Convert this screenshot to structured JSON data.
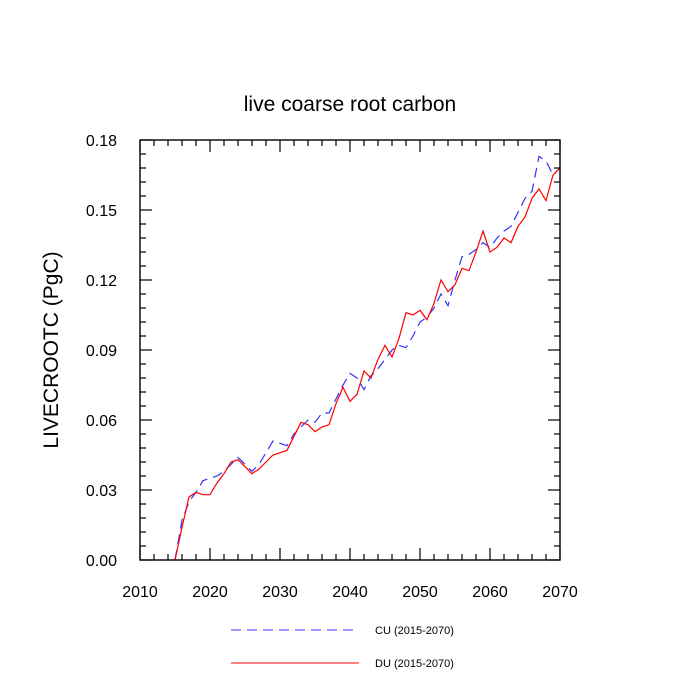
{
  "chart_data": {
    "type": "line",
    "title": "live coarse root carbon",
    "xlabel": "",
    "ylabel": "LIVECROOTC  (PgC)",
    "xlim": [
      2010,
      2070
    ],
    "ylim": [
      0.0,
      0.18
    ],
    "xticks": [
      2010,
      2020,
      2030,
      2040,
      2050,
      2060,
      2070
    ],
    "xtick_labels": [
      "2010",
      "2020",
      "2030",
      "2040",
      "2050",
      "2060",
      "2070"
    ],
    "yticks": [
      0.0,
      0.03,
      0.06,
      0.09,
      0.12,
      0.15,
      0.18
    ],
    "ytick_labels": [
      "0.00",
      "0.03",
      "0.06",
      "0.09",
      "0.12",
      "0.15",
      "0.18"
    ],
    "grid": false,
    "legend_position": "bottom",
    "x": [
      2015,
      2016,
      2017,
      2018,
      2019,
      2020,
      2021,
      2022,
      2023,
      2024,
      2025,
      2026,
      2027,
      2028,
      2029,
      2030,
      2031,
      2032,
      2033,
      2034,
      2035,
      2036,
      2037,
      2038,
      2039,
      2040,
      2041,
      2042,
      2043,
      2044,
      2045,
      2046,
      2047,
      2048,
      2049,
      2050,
      2051,
      2052,
      2053,
      2054,
      2055,
      2056,
      2057,
      2058,
      2059,
      2060,
      2061,
      2062,
      2063,
      2064,
      2065,
      2066,
      2067,
      2068,
      2069,
      2070
    ],
    "series": [
      {
        "name": "CU (2015-2070)",
        "color": "#3333ff",
        "style": "dashed",
        "values": [
          0.0,
          0.017,
          0.025,
          0.029,
          0.034,
          0.035,
          0.036,
          0.038,
          0.041,
          0.044,
          0.041,
          0.038,
          0.041,
          0.046,
          0.051,
          0.05,
          0.049,
          0.054,
          0.057,
          0.06,
          0.059,
          0.063,
          0.063,
          0.069,
          0.075,
          0.08,
          0.078,
          0.073,
          0.079,
          0.082,
          0.086,
          0.09,
          0.092,
          0.091,
          0.096,
          0.102,
          0.104,
          0.108,
          0.114,
          0.109,
          0.12,
          0.13,
          0.131,
          0.133,
          0.136,
          0.134,
          0.138,
          0.141,
          0.143,
          0.149,
          0.155,
          0.158,
          0.173,
          0.171,
          0.165,
          0.168
        ]
      },
      {
        "name": "DU (2015-2070)",
        "color": "#ff0000",
        "style": "solid",
        "values": [
          0.0,
          0.014,
          0.027,
          0.029,
          0.028,
          0.028,
          0.033,
          0.037,
          0.042,
          0.043,
          0.04,
          0.037,
          0.039,
          0.042,
          0.045,
          0.046,
          0.047,
          0.053,
          0.059,
          0.058,
          0.055,
          0.057,
          0.058,
          0.067,
          0.074,
          0.068,
          0.071,
          0.081,
          0.078,
          0.086,
          0.092,
          0.087,
          0.095,
          0.106,
          0.105,
          0.107,
          0.103,
          0.11,
          0.12,
          0.115,
          0.118,
          0.125,
          0.124,
          0.132,
          0.141,
          0.132,
          0.134,
          0.138,
          0.136,
          0.143,
          0.147,
          0.155,
          0.159,
          0.154,
          0.165,
          0.168
        ]
      }
    ]
  }
}
